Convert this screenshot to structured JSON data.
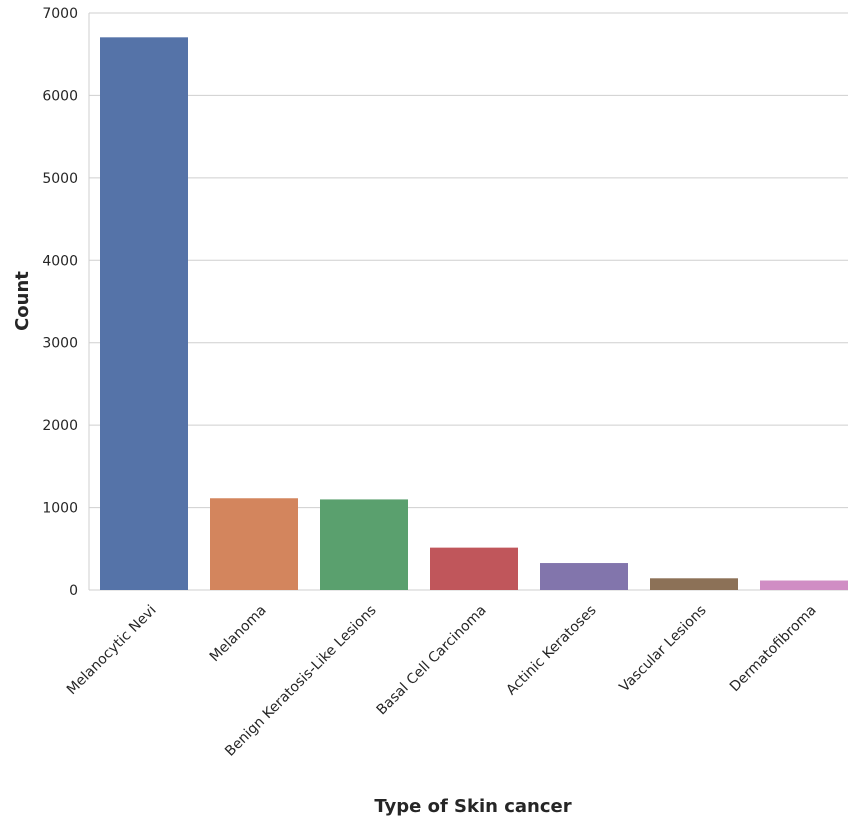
{
  "chart_data": {
    "type": "bar",
    "xlabel": "Type of Skin cancer",
    "ylabel": "Count",
    "ylim": [
      0,
      7000
    ],
    "yticks": [
      0,
      1000,
      2000,
      3000,
      4000,
      5000,
      6000,
      7000
    ],
    "grid": "horizontal",
    "categories": [
      "Melanocytic Nevi",
      "Melanoma",
      "Benign Keratosis-Like Lesions",
      "Basal Cell Carcinoma",
      "Actinic Keratoses",
      "Vascular Lesions",
      "Dermatofibroma"
    ],
    "values": [
      6705,
      1113,
      1099,
      514,
      327,
      142,
      115
    ],
    "colors": [
      "#5573a8",
      "#d3855d",
      "#5aa06e",
      "#c0565b",
      "#8275ac",
      "#8c7157",
      "#d08dc4"
    ]
  }
}
